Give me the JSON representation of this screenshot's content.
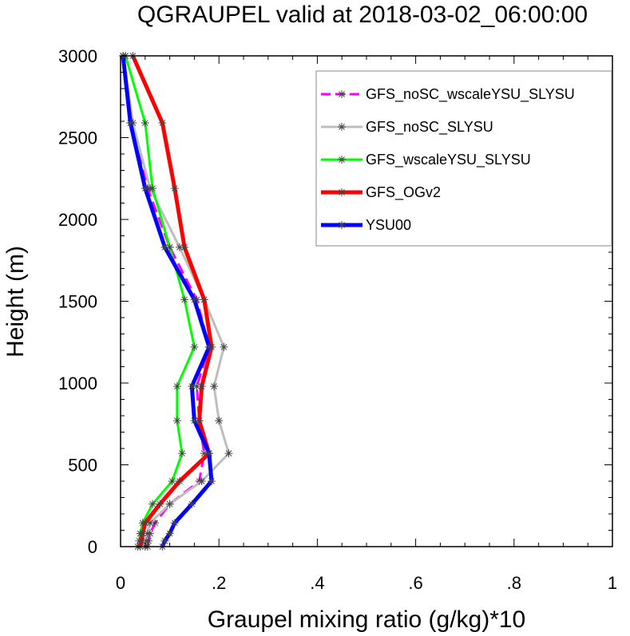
{
  "chart_data": {
    "type": "line",
    "title": "QGRAUPEL valid at 2018-03-02_06:00:00",
    "xlabel": "Graupel mixing ratio (g/kg)*10",
    "ylabel": "Height (m)",
    "xlim": [
      0,
      1
    ],
    "ylim": [
      0,
      3000
    ],
    "xticks": [
      "0",
      ".2",
      ".4",
      ".6",
      ".8",
      "1"
    ],
    "xtick_values": [
      0,
      0.2,
      0.4,
      0.6,
      0.8,
      1
    ],
    "yticks": [
      "0",
      "500",
      "1000",
      "1500",
      "2000",
      "2500",
      "3000"
    ],
    "ytick_values": [
      0,
      500,
      1000,
      1500,
      2000,
      2500,
      3000
    ],
    "legend_position": "top-right",
    "grid": false,
    "series": [
      {
        "name": "GFS_noSC_wscaleYSU_SLYSU",
        "color": "#ff00ff",
        "dash": true,
        "width": 3,
        "points": [
          [
            0.055,
            0
          ],
          [
            0.057,
            35
          ],
          [
            0.06,
            80
          ],
          [
            0.07,
            145
          ],
          [
            0.1,
            260
          ],
          [
            0.16,
            400
          ],
          [
            0.17,
            570
          ],
          [
            0.16,
            770
          ],
          [
            0.155,
            980
          ],
          [
            0.18,
            1220
          ],
          [
            0.155,
            1510
          ],
          [
            0.1,
            1830
          ],
          [
            0.055,
            2190
          ],
          [
            0.02,
            2590
          ],
          [
            0.005,
            3000
          ]
        ]
      },
      {
        "name": "GFS_noSC_SLYSU",
        "color": "#bebebe",
        "dash": false,
        "width": 3,
        "points": [
          [
            0.05,
            0
          ],
          [
            0.052,
            35
          ],
          [
            0.055,
            80
          ],
          [
            0.06,
            145
          ],
          [
            0.1,
            260
          ],
          [
            0.165,
            400
          ],
          [
            0.22,
            570
          ],
          [
            0.2,
            770
          ],
          [
            0.19,
            980
          ],
          [
            0.21,
            1220
          ],
          [
            0.17,
            1510
          ],
          [
            0.12,
            1830
          ],
          [
            0.06,
            2190
          ],
          [
            0.025,
            2590
          ],
          [
            0.005,
            3000
          ]
        ]
      },
      {
        "name": "GFS_wscaleYSU_SLYSU",
        "color": "#00ff00",
        "dash": false,
        "width": 3,
        "points": [
          [
            0.035,
            0
          ],
          [
            0.038,
            35
          ],
          [
            0.04,
            80
          ],
          [
            0.045,
            145
          ],
          [
            0.065,
            260
          ],
          [
            0.105,
            400
          ],
          [
            0.125,
            570
          ],
          [
            0.115,
            770
          ],
          [
            0.115,
            980
          ],
          [
            0.15,
            1220
          ],
          [
            0.13,
            1510
          ],
          [
            0.1,
            1830
          ],
          [
            0.065,
            2190
          ],
          [
            0.05,
            2590
          ],
          [
            0.01,
            3000
          ]
        ]
      },
      {
        "name": "GFS_OGv2",
        "color": "#ff0000",
        "dash": false,
        "width": 5,
        "points": [
          [
            0.04,
            0
          ],
          [
            0.043,
            35
          ],
          [
            0.045,
            80
          ],
          [
            0.05,
            145
          ],
          [
            0.08,
            260
          ],
          [
            0.12,
            400
          ],
          [
            0.18,
            570
          ],
          [
            0.16,
            770
          ],
          [
            0.165,
            980
          ],
          [
            0.185,
            1220
          ],
          [
            0.17,
            1510
          ],
          [
            0.13,
            1830
          ],
          [
            0.11,
            2190
          ],
          [
            0.085,
            2590
          ],
          [
            0.025,
            3000
          ]
        ]
      },
      {
        "name": "YSU00",
        "color": "#0000ff",
        "dash": false,
        "width": 5,
        "points": [
          [
            0.085,
            0
          ],
          [
            0.09,
            35
          ],
          [
            0.1,
            80
          ],
          [
            0.11,
            145
          ],
          [
            0.145,
            260
          ],
          [
            0.185,
            400
          ],
          [
            0.18,
            570
          ],
          [
            0.15,
            770
          ],
          [
            0.145,
            980
          ],
          [
            0.18,
            1220
          ],
          [
            0.15,
            1510
          ],
          [
            0.09,
            1830
          ],
          [
            0.05,
            2190
          ],
          [
            0.02,
            2590
          ],
          [
            0.005,
            3000
          ]
        ]
      }
    ]
  }
}
